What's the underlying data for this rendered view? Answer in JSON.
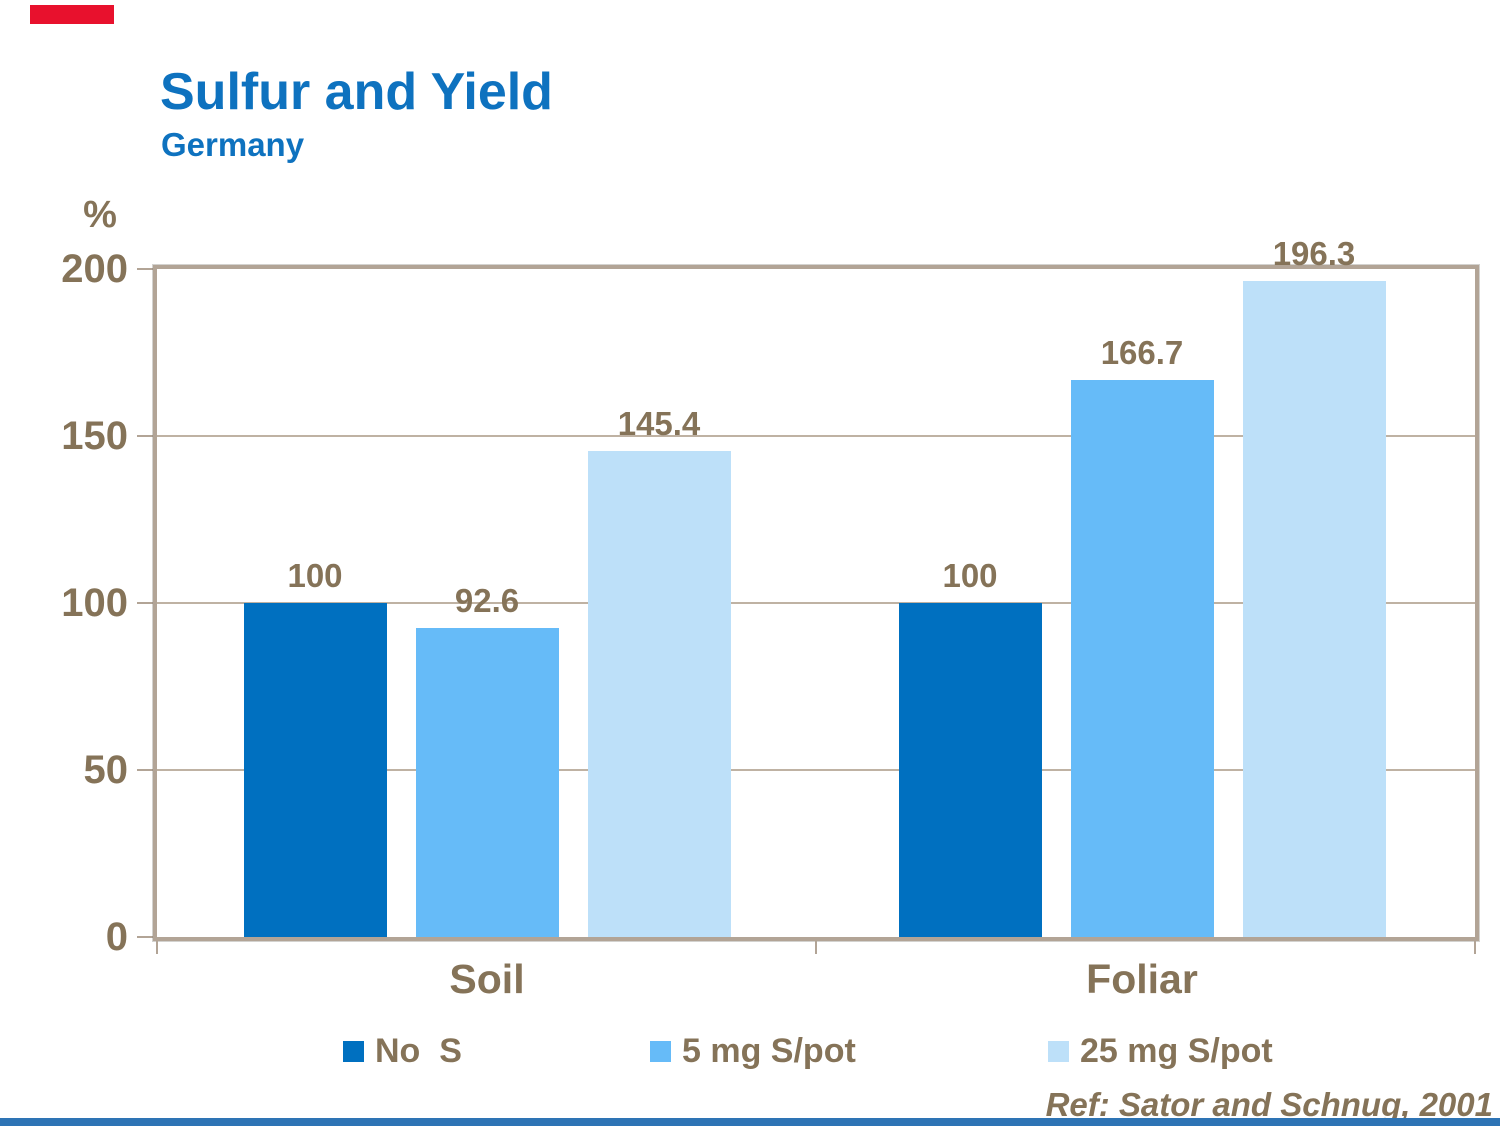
{
  "slide": {
    "title": "Sulfur and Yield",
    "subtitle": "Germany",
    "reference": "Ref: Sator and Schnug, 2001"
  },
  "colors": {
    "title_blue": "#0E72BF",
    "axis_tan": "#B2A496",
    "text_brown": "#857358",
    "accent_red": "#E8112D",
    "footer_blue": "#2E74B5"
  },
  "chart_data": {
    "type": "bar",
    "title": "Sulfur and Yield",
    "subtitle": "Germany",
    "ylabel": "%",
    "xlabel": "",
    "ylim": [
      0,
      200
    ],
    "yticks": [
      0,
      50,
      100,
      150,
      200
    ],
    "grid": true,
    "data_labels": true,
    "legend_position": "bottom",
    "categories": [
      "Soil",
      "Foliar"
    ],
    "series": [
      {
        "name": "No  S",
        "color": "#0070C0",
        "values": [
          100,
          100
        ]
      },
      {
        "name": "5 mg S/pot",
        "color": "#66BBF8",
        "values": [
          92.6,
          166.7
        ]
      },
      {
        "name": "25 mg S/pot",
        "color": "#BDE0F9",
        "values": [
          145.4,
          196.3
        ]
      }
    ]
  }
}
